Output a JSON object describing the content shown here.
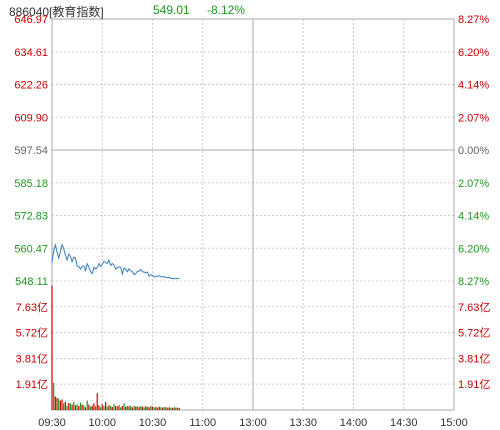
{
  "header": {
    "code_name": "886040[教育指数]",
    "price": "549.01",
    "change_pct": "-8.12%"
  },
  "colors": {
    "up": "#cc0000",
    "down": "#1a9a1a",
    "neutral": "#666666",
    "line": "#3a7fc0",
    "grid": "#cccccc"
  },
  "chart_data": {
    "type": "line",
    "price_axis": {
      "ylim": [
        548.11,
        646.97
      ],
      "left_labels": [
        "646.97",
        "634.61",
        "622.26",
        "609.90",
        "597.54",
        "585.18",
        "572.83",
        "560.47",
        "548.11"
      ],
      "right_labels": [
        "8.27%",
        "6.20%",
        "4.14%",
        "2.07%",
        "0.00%",
        "2.07%",
        "4.14%",
        "6.20%",
        "8.27%"
      ],
      "baseline": "597.54"
    },
    "volume_axis": {
      "ylim": [
        0,
        9.54
      ],
      "unit": "亿",
      "left_labels": [
        "7.63亿",
        "5.72亿",
        "3.81亿",
        "1.91亿"
      ],
      "right_labels": [
        "7.63亿",
        "5.72亿",
        "3.81亿",
        "1.91亿"
      ]
    },
    "x_tick_labels": [
      "09:30",
      "10:00",
      "10:30",
      "11:00",
      "13:00",
      "13:30",
      "14:00",
      "14:30",
      "15:00"
    ],
    "grid": true,
    "series": [
      {
        "type": "line",
        "x_minutes": [
          0,
          1,
          2,
          3,
          4,
          5,
          6,
          7,
          8,
          9,
          10,
          11,
          12,
          13,
          14,
          15,
          16,
          17,
          18,
          19,
          20,
          21,
          22,
          23,
          24,
          25,
          26,
          27,
          28,
          29,
          30,
          31,
          32,
          33,
          34,
          35,
          36,
          37,
          38,
          39,
          40,
          41,
          42,
          43,
          44,
          45,
          46,
          47,
          48,
          49,
          50,
          51,
          52,
          53,
          54,
          55,
          56,
          57,
          58,
          59,
          60,
          61,
          62,
          63,
          64,
          65,
          66,
          67,
          68,
          69,
          70,
          71,
          72,
          73,
          74,
          75,
          76
        ],
        "values": [
          555.0,
          559.5,
          561.7,
          559.0,
          556.8,
          559.1,
          561.8,
          560.3,
          557.9,
          556.1,
          558.3,
          557.4,
          555.4,
          557.1,
          556.8,
          553.7,
          553.6,
          552.6,
          553.7,
          553.8,
          552.1,
          554.6,
          553.4,
          551.7,
          550.9,
          553.3,
          552.7,
          553.1,
          554.7,
          553.6,
          554.4,
          555.5,
          555.0,
          554.7,
          556.0,
          554.0,
          554.7,
          554.2,
          552.6,
          553.2,
          553.4,
          553.3,
          550.7,
          553.0,
          552.6,
          551.6,
          552.7,
          552.0,
          551.6,
          550.5,
          550.9,
          551.8,
          551.8,
          552.5,
          551.6,
          551.5,
          551.2,
          551.5,
          549.9,
          550.5,
          550.2,
          549.6,
          549.9,
          549.8,
          550.2,
          549.8,
          549.6,
          549.8,
          549.5,
          549.3,
          549.5,
          549.0,
          549.1,
          548.9,
          549.1,
          549.0,
          549.0
        ]
      },
      {
        "type": "bar",
        "name": "volume",
        "x_minutes": [
          0,
          1,
          2,
          3,
          4,
          5,
          6,
          7,
          8,
          9,
          10,
          11,
          12,
          13,
          14,
          15,
          16,
          17,
          18,
          19,
          20,
          21,
          22,
          23,
          24,
          25,
          26,
          27,
          28,
          29,
          30,
          31,
          32,
          33,
          34,
          35,
          36,
          37,
          38,
          39,
          40,
          41,
          42,
          43,
          44,
          45,
          46,
          47,
          48,
          49,
          50,
          51,
          52,
          53,
          54,
          55,
          56,
          57,
          58,
          59,
          60,
          61,
          62,
          63,
          64,
          65,
          66,
          67,
          68,
          69,
          70,
          71,
          72,
          73,
          74,
          75,
          76
        ],
        "values": [
          9.2,
          2.0,
          1.0,
          0.9,
          0.85,
          0.7,
          0.78,
          0.5,
          0.6,
          0.3,
          0.52,
          0.48,
          0.4,
          0.6,
          0.35,
          0.45,
          0.3,
          0.55,
          0.4,
          0.35,
          0.2,
          0.7,
          0.4,
          0.25,
          0.32,
          0.5,
          0.28,
          1.25,
          0.35,
          0.2,
          0.42,
          0.3,
          0.6,
          0.25,
          0.35,
          0.3,
          0.22,
          0.45,
          0.3,
          0.27,
          0.35,
          0.2,
          0.3,
          0.5,
          0.25,
          0.3,
          0.28,
          0.32,
          0.2,
          0.3,
          0.26,
          0.28,
          0.22,
          0.3,
          0.25,
          0.2,
          0.28,
          0.24,
          0.2,
          0.3,
          0.25,
          0.2,
          0.22,
          0.18,
          0.25,
          0.2,
          0.18,
          0.22,
          0.2,
          0.17,
          0.2,
          0.18,
          0.16,
          0.2,
          0.18,
          0.17,
          0.15
        ],
        "colors": [
          "up",
          "down",
          "up",
          "up",
          "down",
          "up",
          "up",
          "down",
          "up",
          "down",
          "up",
          "down",
          "up",
          "down",
          "up",
          "down",
          "up",
          "down",
          "up",
          "down",
          "up",
          "down",
          "up",
          "down",
          "up",
          "up",
          "down",
          "up",
          "up",
          "down",
          "up",
          "down",
          "up",
          "down",
          "up",
          "down",
          "up",
          "down",
          "up",
          "down",
          "up",
          "down",
          "up",
          "down",
          "up",
          "down",
          "up",
          "down",
          "up",
          "down",
          "up",
          "down",
          "up",
          "down",
          "up",
          "down",
          "up",
          "down",
          "up",
          "down",
          "up",
          "down",
          "up",
          "down",
          "up",
          "down",
          "up",
          "down",
          "up",
          "down",
          "up",
          "down",
          "up",
          "down",
          "up",
          "down",
          "up"
        ]
      }
    ]
  }
}
